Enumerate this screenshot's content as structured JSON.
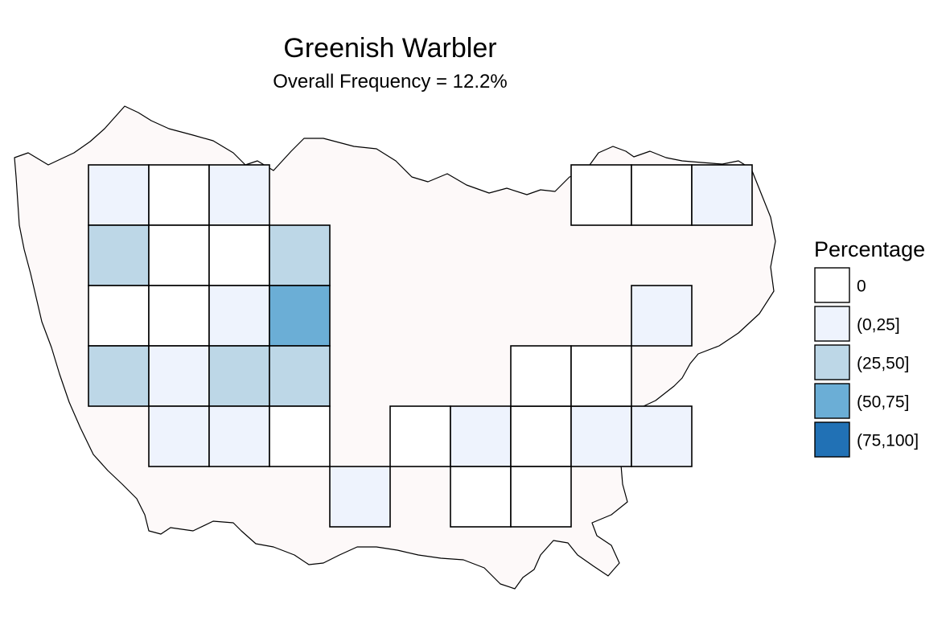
{
  "title": "Greenish Warbler",
  "subtitle": "Overall Frequency = 12.2%",
  "legend": {
    "title": "Percentage",
    "items": [
      {
        "label": "0",
        "color": "#ffffff"
      },
      {
        "label": "(0,25]",
        "color": "#eef3fd"
      },
      {
        "label": "(25,50]",
        "color": "#bdd7e7"
      },
      {
        "label": "(50,75]",
        "color": "#6baed6"
      },
      {
        "label": "(75,100]",
        "color": "#2171b5"
      }
    ]
  },
  "colors": {
    "region_fill": "#fdf9f9",
    "region_stroke": "#000000",
    "cell_stroke": "#000000"
  },
  "chart_data": {
    "type": "heatmap",
    "title": "Greenish Warbler",
    "subtitle": "Overall Frequency = 12.2%",
    "legend_title": "Percentage",
    "legend_position": "right",
    "grid": false,
    "bins": [
      "0",
      "(0,25]",
      "(25,50]",
      "(50,75]",
      "(75,100]"
    ],
    "cells": [
      {
        "col": 0,
        "row": 0,
        "bin": "(0,25]"
      },
      {
        "col": 1,
        "row": 0,
        "bin": "0"
      },
      {
        "col": 2,
        "row": 0,
        "bin": "(0,25]"
      },
      {
        "col": 0,
        "row": 1,
        "bin": "(25,50]"
      },
      {
        "col": 1,
        "row": 1,
        "bin": "0"
      },
      {
        "col": 2,
        "row": 1,
        "bin": "0"
      },
      {
        "col": 3,
        "row": 1,
        "bin": "(25,50]"
      },
      {
        "col": 0,
        "row": 2,
        "bin": "0"
      },
      {
        "col": 1,
        "row": 2,
        "bin": "0"
      },
      {
        "col": 2,
        "row": 2,
        "bin": "(0,25]"
      },
      {
        "col": 3,
        "row": 2,
        "bin": "(50,75]"
      },
      {
        "col": 0,
        "row": 3,
        "bin": "(25,50]"
      },
      {
        "col": 1,
        "row": 3,
        "bin": "(0,25]"
      },
      {
        "col": 2,
        "row": 3,
        "bin": "(25,50]"
      },
      {
        "col": 3,
        "row": 3,
        "bin": "(25,50]"
      },
      {
        "col": 1,
        "row": 4,
        "bin": "(0,25]"
      },
      {
        "col": 2,
        "row": 4,
        "bin": "(0,25]"
      },
      {
        "col": 3,
        "row": 4,
        "bin": "0"
      },
      {
        "col": 4,
        "row": 5,
        "bin": "(0,25]"
      },
      {
        "col": 5,
        "row": 4,
        "bin": "0"
      },
      {
        "col": 6,
        "row": 4,
        "bin": "(0,25]"
      },
      {
        "col": 7,
        "row": 4,
        "bin": "0"
      },
      {
        "col": 8,
        "row": 4,
        "bin": "(0,25]"
      },
      {
        "col": 9,
        "row": 4,
        "bin": "(0,25]"
      },
      {
        "col": 6,
        "row": 5,
        "bin": "0"
      },
      {
        "col": 7,
        "row": 5,
        "bin": "0"
      },
      {
        "col": 7,
        "row": 3,
        "bin": "0"
      },
      {
        "col": 8,
        "row": 3,
        "bin": "0"
      },
      {
        "col": 9,
        "row": 2,
        "bin": "(0,25]"
      },
      {
        "col": 8,
        "row": 0,
        "bin": "0"
      },
      {
        "col": 9,
        "row": 0,
        "bin": "0"
      },
      {
        "col": 10,
        "row": 0,
        "bin": "(0,25]"
      }
    ]
  }
}
